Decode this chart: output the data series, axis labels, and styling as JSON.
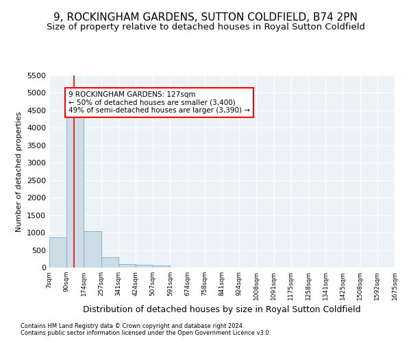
{
  "title": "9, ROCKINGHAM GARDENS, SUTTON COLDFIELD, B74 2PN",
  "subtitle": "Size of property relative to detached houses in Royal Sutton Coldfield",
  "xlabel": "Distribution of detached houses by size in Royal Sutton Coldfield",
  "ylabel": "Number of detached properties",
  "footnote1": "Contains HM Land Registry data © Crown copyright and database right 2024.",
  "footnote2": "Contains public sector information licensed under the Open Government Licence v3.0.",
  "bar_edges": [
    7,
    90,
    174,
    257,
    341,
    424,
    507,
    591,
    674,
    758,
    841,
    924,
    1008,
    1091,
    1175,
    1258,
    1341,
    1425,
    1508,
    1592,
    1675
  ],
  "bar_heights": [
    870,
    4560,
    1050,
    290,
    90,
    80,
    60,
    0,
    0,
    0,
    0,
    0,
    0,
    0,
    0,
    0,
    0,
    0,
    0,
    0
  ],
  "bar_color": "#ccdde8",
  "bar_edge_color": "#7aaac8",
  "property_size": 127,
  "annotation_text": "9 ROCKINGHAM GARDENS: 127sqm\n← 50% of detached houses are smaller (3,400)\n49% of semi-detached houses are larger (3,390) →",
  "annotation_box_color": "white",
  "annotation_box_edge_color": "red",
  "vline_color": "red",
  "ylim": [
    0,
    5500
  ],
  "yticks": [
    0,
    500,
    1000,
    1500,
    2000,
    2500,
    3000,
    3500,
    4000,
    4500,
    5000,
    5500
  ],
  "tick_labels": [
    "7sqm",
    "90sqm",
    "174sqm",
    "257sqm",
    "341sqm",
    "424sqm",
    "507sqm",
    "591sqm",
    "674sqm",
    "758sqm",
    "841sqm",
    "924sqm",
    "1008sqm",
    "1091sqm",
    "1175sqm",
    "1258sqm",
    "1341sqm",
    "1425sqm",
    "1508sqm",
    "1592sqm",
    "1675sqm"
  ],
  "background_color": "#edf2f7",
  "grid_color": "white",
  "title_fontsize": 11,
  "subtitle_fontsize": 9.5,
  "annotation_fontsize": 7.5,
  "ylabel_fontsize": 8,
  "xlabel_fontsize": 9
}
